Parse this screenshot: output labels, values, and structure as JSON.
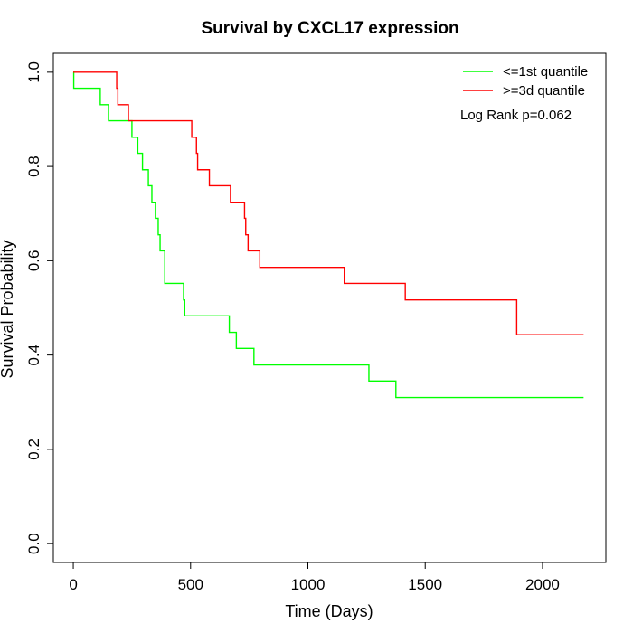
{
  "chart_data": {
    "type": "line",
    "step": true,
    "title": "Survival by CXCL17 expression",
    "xlabel": "Time (Days)",
    "ylabel": "Survival Probability",
    "xlim": [
      -85,
      2270
    ],
    "ylim": [
      -0.04,
      1.04
    ],
    "xticks": [
      0,
      500,
      1000,
      1500,
      2000
    ],
    "xtick_labels": [
      "0",
      "500",
      "1000",
      "1500",
      "2000"
    ],
    "yticks": [
      0.0,
      0.2,
      0.4,
      0.6,
      0.8,
      1.0
    ],
    "ytick_labels": [
      "0.0",
      "0.2",
      "0.4",
      "0.6",
      "0.8",
      "1.0"
    ],
    "grid": false,
    "legend_position": "top-right",
    "annotation": "Log Rank p=0.062",
    "series": [
      {
        "name": "<=1st quantile",
        "color": "#00ff00",
        "points": [
          [
            0,
            1.0
          ],
          [
            2,
            0.966
          ],
          [
            115,
            0.931
          ],
          [
            150,
            0.897
          ],
          [
            250,
            0.862
          ],
          [
            275,
            0.828
          ],
          [
            295,
            0.793
          ],
          [
            320,
            0.759
          ],
          [
            335,
            0.724
          ],
          [
            350,
            0.69
          ],
          [
            362,
            0.655
          ],
          [
            370,
            0.621
          ],
          [
            390,
            0.552
          ],
          [
            470,
            0.517
          ],
          [
            475,
            0.483
          ],
          [
            665,
            0.448
          ],
          [
            695,
            0.414
          ],
          [
            770,
            0.379
          ],
          [
            1260,
            0.345
          ],
          [
            1375,
            0.31
          ],
          [
            2175,
            0.31
          ]
        ]
      },
      {
        "name": ">=3d quantile",
        "color": "#ff0000",
        "points": [
          [
            0,
            1.0
          ],
          [
            185,
            0.966
          ],
          [
            190,
            0.931
          ],
          [
            235,
            0.897
          ],
          [
            505,
            0.862
          ],
          [
            525,
            0.828
          ],
          [
            530,
            0.793
          ],
          [
            580,
            0.759
          ],
          [
            670,
            0.724
          ],
          [
            730,
            0.69
          ],
          [
            735,
            0.655
          ],
          [
            745,
            0.621
          ],
          [
            795,
            0.586
          ],
          [
            1155,
            0.552
          ],
          [
            1415,
            0.517
          ],
          [
            1890,
            0.443
          ],
          [
            2175,
            0.443
          ]
        ]
      }
    ]
  }
}
